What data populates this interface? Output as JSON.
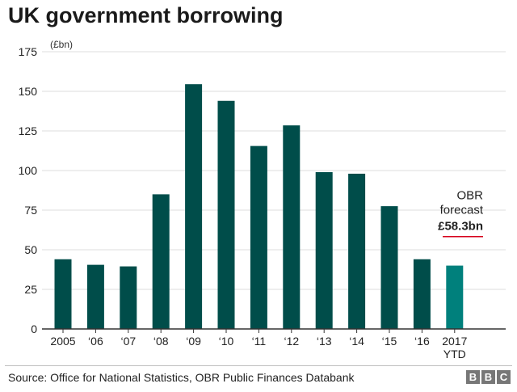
{
  "title": "UK government borrowing",
  "source": "Source: Office for National Statistics, OBR Public Finances Databank",
  "logo": [
    "B",
    "B",
    "C"
  ],
  "colors": {
    "bar": "#004d4a",
    "bar_highlight": "#00807c",
    "forecast_line": "#d6001c",
    "grid": "#dcdcdc",
    "axis": "#333333"
  },
  "chart_data": {
    "type": "bar",
    "ylabel": "(£bn)",
    "ylim": [
      0,
      175
    ],
    "yticks": [
      0,
      25,
      50,
      75,
      100,
      125,
      150,
      175
    ],
    "grid": true,
    "categories": [
      "2005",
      "‘06",
      "‘07",
      "‘08",
      "‘09",
      "‘10",
      "‘11",
      "‘12",
      "‘13",
      "‘14",
      "‘15",
      "‘16",
      "2017 YTD"
    ],
    "values": [
      44,
      40.5,
      39.5,
      85,
      154.5,
      144,
      115.5,
      128.5,
      99,
      98,
      77.5,
      44,
      40
    ],
    "highlight_index": 12,
    "annotation": {
      "lines": [
        "OBR",
        "forecast"
      ],
      "value_label": "£58.3bn",
      "value": 58.3
    }
  }
}
